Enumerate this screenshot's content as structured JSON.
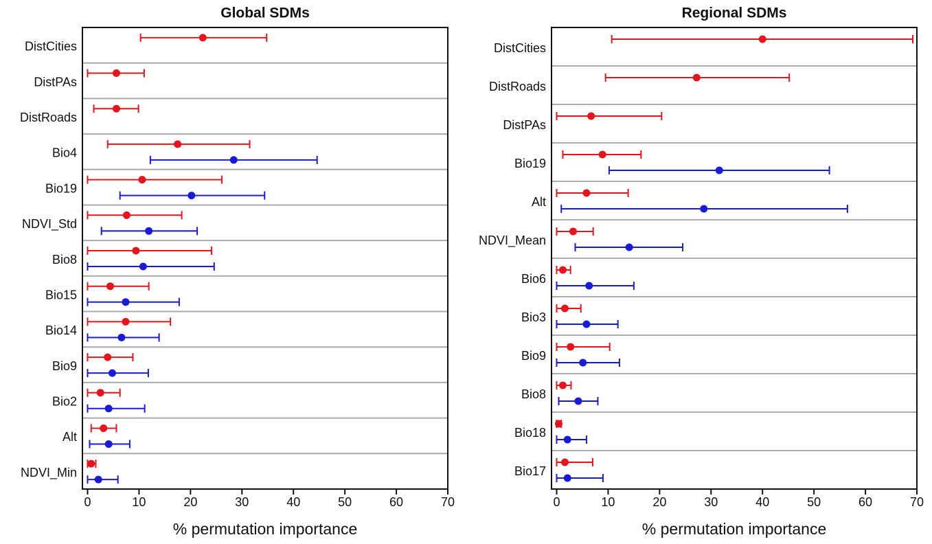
{
  "chart_data": [
    {
      "type": "dot-errorbar",
      "title": "Global SDMs",
      "x_label": "% permutation importance",
      "categories": [
        "DistCities",
        "DistPAs",
        "DistRoads",
        "Bio4",
        "Bio19",
        "NDVI_Std",
        "Bio8",
        "Bio15",
        "Bio14",
        "Bio9",
        "Bio2",
        "Alt",
        "NDVI_Min"
      ],
      "series": [
        {
          "color": "#e8141b",
          "values": [
            22.4,
            5.6,
            5.6,
            17.5,
            10.6,
            7.6,
            9.4,
            4.4,
            7.4,
            3.9,
            2.5,
            3.1,
            0.7
          ],
          "lower": [
            10.3,
            0,
            1.2,
            3.9,
            0,
            0,
            0,
            0,
            0,
            0,
            0,
            0.7,
            0
          ],
          "upper": [
            34.8,
            11.0,
            9.9,
            31.5,
            26.1,
            18.3,
            24.1,
            11.9,
            16.1,
            8.8,
            6.3,
            5.6,
            1.6
          ]
        },
        {
          "color": "#1a1adb",
          "values": [
            null,
            null,
            null,
            28.4,
            20.2,
            11.9,
            10.8,
            7.4,
            6.6,
            4.8,
            4.1,
            4.1,
            2.1
          ],
          "lower": [
            null,
            null,
            null,
            12.2,
            6.3,
            2.7,
            0,
            0,
            0,
            0,
            0,
            0.4,
            0
          ],
          "upper": [
            null,
            null,
            null,
            44.6,
            34.4,
            21.3,
            24.6,
            17.8,
            13.9,
            11.8,
            11.1,
            8.2,
            5.9
          ]
        }
      ],
      "xlim": [
        -1,
        70
      ],
      "xticks": [
        0,
        10,
        20,
        30,
        40,
        50,
        60,
        70
      ]
    },
    {
      "type": "dot-errorbar",
      "title": "Regional SDMs",
      "x_label": "% permutation importance",
      "categories": [
        "DistCities",
        "DistRoads",
        "DistPAs",
        "Bio19",
        "Alt",
        "NDVI_Mean",
        "Bio6",
        "Bio3",
        "Bio9",
        "Bio8",
        "Bio18",
        "Bio17"
      ],
      "series": [
        {
          "color": "#e8141b",
          "values": [
            40.0,
            27.2,
            6.7,
            8.9,
            5.8,
            3.2,
            1.2,
            1.6,
            2.7,
            1.2,
            0.4,
            1.6
          ],
          "lower": [
            10.7,
            9.5,
            0,
            1.2,
            0,
            0,
            0,
            0,
            0,
            0,
            0,
            0
          ],
          "upper": [
            69.2,
            45.2,
            20.4,
            16.4,
            13.9,
            7.1,
            2.7,
            4.7,
            10.3,
            2.8,
            0.9,
            7.0
          ]
        },
        {
          "color": "#1a1adb",
          "values": [
            null,
            null,
            null,
            31.6,
            28.6,
            14.1,
            6.3,
            5.8,
            5.1,
            4.2,
            2.1,
            2.1
          ],
          "lower": [
            null,
            null,
            null,
            10.2,
            0.9,
            3.6,
            0,
            0,
            0,
            0.4,
            0,
            0
          ],
          "upper": [
            null,
            null,
            null,
            53.0,
            56.5,
            24.5,
            15.0,
            11.9,
            12.2,
            8.0,
            5.8,
            9.0
          ]
        }
      ],
      "xlim": [
        -1,
        70
      ],
      "xticks": [
        0,
        10,
        20,
        30,
        40,
        50,
        60,
        70
      ]
    }
  ]
}
